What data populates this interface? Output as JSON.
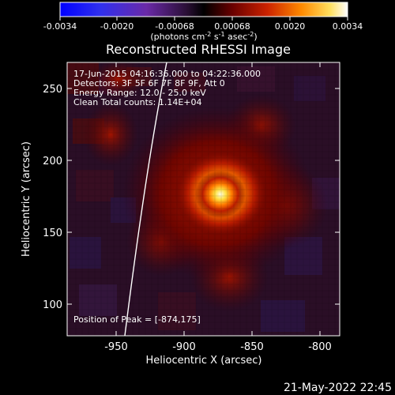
{
  "colorbar": {
    "ticks": [
      "-0.0034",
      "-0.0020",
      "-0.00068",
      "0.00068",
      "0.0020",
      "0.0034"
    ],
    "units_main": "(photons cm",
    "units_exp1": "-2",
    "units_mid": " s",
    "units_exp2": "-1",
    "units_tail": " asec",
    "units_exp3": "-2",
    "units_close": ")"
  },
  "title": "Reconstructed RHESSI Image",
  "info": {
    "line1": "17-Jun-2015 04:16:36.000 to 04:22:36.000",
    "line2": "Detectors: 3F 5F 6F 7F 8F 9F, Att 0",
    "line3": "Energy Range: 12.0 - 25.0 keV",
    "line4": "Clean    Total counts: 1.14E+04",
    "peak": "Position of Peak = [-874,175]"
  },
  "axes": {
    "xlabel": "Heliocentric X (arcsec)",
    "ylabel": "Heliocentric Y (arcsec)",
    "xticks": [
      "-950",
      "-900",
      "-850",
      "-800"
    ],
    "yticks": [
      "250",
      "200",
      "150",
      "100"
    ]
  },
  "timestamp": "21-May-2022 22:45",
  "colors": {
    "background": "#000000",
    "peak": "#ffffcc",
    "limb": "#ffffff"
  }
}
